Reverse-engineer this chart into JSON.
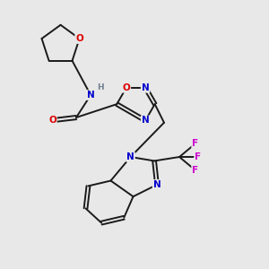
{
  "background_color": "#e8e8e8",
  "bond_color": "#1a1a1a",
  "atom_colors": {
    "N": "#0000cc",
    "O": "#dd0000",
    "F": "#cc00cc",
    "H": "#708090",
    "C": "#1a1a1a"
  },
  "figsize": [
    3.0,
    3.0
  ],
  "dpi": 100,
  "lw": 1.4,
  "fs": 7.5
}
